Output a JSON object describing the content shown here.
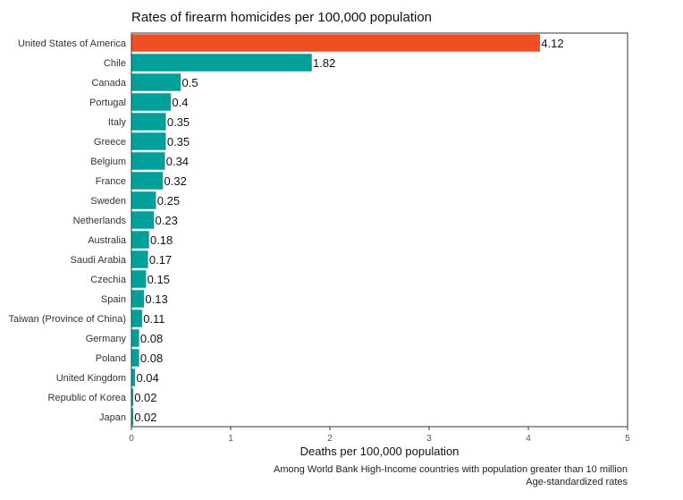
{
  "chart_data": {
    "type": "bar",
    "orientation": "horizontal",
    "title": "Rates of firearm homicides per 100,000 population",
    "xlabel": "Deaths per 100,000 population",
    "ylabel": "",
    "xlim": [
      0,
      5
    ],
    "xticks": [
      0,
      1,
      2,
      3,
      4,
      5
    ],
    "grid": false,
    "legend": "none",
    "categories": [
      "United States of America",
      "Chile",
      "Canada",
      "Portugal",
      "Italy",
      "Greece",
      "Belgium",
      "France",
      "Sweden",
      "Netherlands",
      "Australia",
      "Saudi Arabia",
      "Czechia",
      "Spain",
      "Taiwan (Province of China)",
      "Germany",
      "Poland",
      "United Kingdom",
      "Republic of Korea",
      "Japan"
    ],
    "values": [
      4.12,
      1.82,
      0.5,
      0.4,
      0.35,
      0.35,
      0.34,
      0.32,
      0.25,
      0.23,
      0.18,
      0.17,
      0.15,
      0.13,
      0.11,
      0.08,
      0.08,
      0.04,
      0.02,
      0.02
    ],
    "value_labels": [
      "4.12",
      "1.82",
      "0.5",
      "0.4",
      "0.35",
      "0.35",
      "0.34",
      "0.32",
      "0.25",
      "0.23",
      "0.18",
      "0.17",
      "0.15",
      "0.13",
      "0.11",
      "0.08",
      "0.08",
      "0.04",
      "0.02",
      "0.02"
    ],
    "highlight_index": 0,
    "colors": {
      "highlight": "#f04e23",
      "default": "#00a19a",
      "axis": "#333333"
    },
    "notes": [
      "Among World Bank High-Income countries with population greater than 10 million",
      "Age-standardized rates"
    ]
  }
}
